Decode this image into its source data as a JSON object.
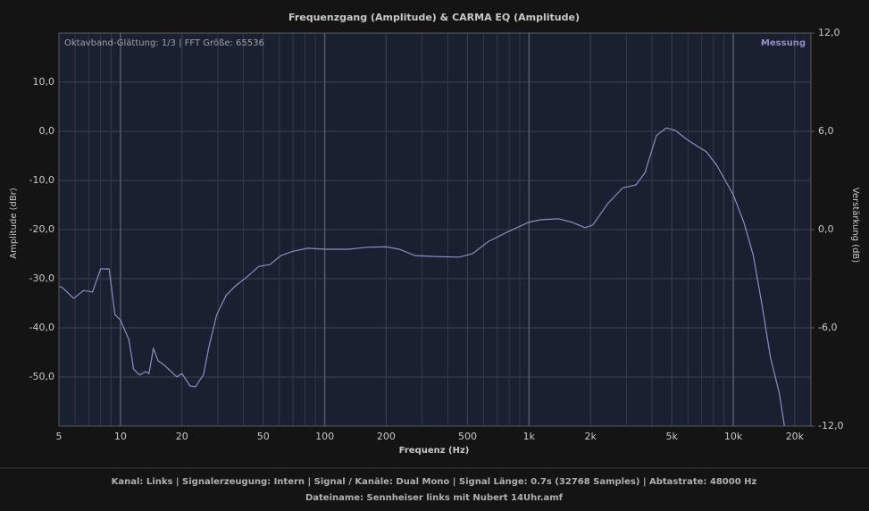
{
  "chart_data": {
    "type": "line",
    "title": "Frequenzgang (Amplitude) & CARMA EQ (Amplitude)",
    "annotation": "Oktavband-Glättung: 1/3 | FFT Größe: 65536",
    "x_label": "Frequenz (Hz)",
    "y_label": "Amplitude (dBr)",
    "y2_label": "Verstärkung (dB)",
    "log_x": true,
    "grid": true,
    "legend_position": "top-right",
    "xlim": [
      5,
      24000
    ],
    "xticks": [
      5,
      10,
      20,
      50,
      100,
      200,
      500,
      {
        "value": 1000,
        "label": "1k"
      },
      {
        "value": 2000,
        "label": "2k"
      },
      {
        "value": 5000,
        "label": "5k"
      },
      {
        "value": 10000,
        "label": "10k"
      },
      {
        "value": 20000,
        "label": "20k"
      }
    ],
    "xminor": [
      6,
      7,
      8,
      9,
      30,
      40,
      60,
      70,
      80,
      90,
      300,
      400,
      600,
      700,
      800,
      900,
      3000,
      4000,
      6000,
      7000,
      8000,
      9000
    ],
    "ylim": [
      -60,
      20
    ],
    "yticks": [
      {
        "value": -50,
        "label": "-50,0"
      },
      {
        "value": -40,
        "label": "-40,0"
      },
      {
        "value": -30,
        "label": "-30,0"
      },
      {
        "value": -20,
        "label": "-20,0"
      },
      {
        "value": -10,
        "label": "-10,0"
      },
      {
        "value": 0,
        "label": "0,0"
      },
      {
        "value": 10,
        "label": "10,0"
      }
    ],
    "y2lim": [
      -12,
      12
    ],
    "y2ticks": [
      {
        "value": -12,
        "label": "-12,0"
      },
      {
        "value": -6,
        "label": "-6,0"
      },
      {
        "value": 0,
        "label": "0,0"
      },
      {
        "value": 6,
        "label": "6,0"
      },
      {
        "value": 12,
        "label": "12,0"
      }
    ],
    "x": [
      5,
      5.2,
      5.9,
      6.6,
      7.3,
      8.0,
      8.8,
      9.4,
      10,
      11,
      11.6,
      12.4,
      13.3,
      13.8,
      14.5,
      15.3,
      16.3,
      17.7,
      18.9,
      20,
      20.9,
      21.9,
      23.3,
      24.4,
      25.5,
      27,
      29.6,
      33,
      36.5,
      41.7,
      47.5,
      54,
      61,
      70,
      82.6,
      100,
      131,
      160,
      200,
      232,
      277,
      356,
      455,
      529,
      634,
      792,
      1000,
      1140,
      1390,
      1620,
      1880,
      2050,
      2430,
      2880,
      3340,
      3700,
      4200,
      4700,
      5200,
      5900,
      6600,
      7400,
      8300,
      10000,
      11300,
      12500,
      13800,
      15200,
      16800,
      17800
    ],
    "series": [
      {
        "name": "Messung",
        "color": "#8a8fc0",
        "values": [
          -31.5,
          -31.8,
          -34.0,
          -32.4,
          -32.7,
          -28.0,
          -28.0,
          -37.3,
          -38.4,
          -42.4,
          -48.4,
          -49.6,
          -48.9,
          -49.3,
          -44.2,
          -46.7,
          -47.5,
          -48.9,
          -50.0,
          -49.3,
          -50.5,
          -51.8,
          -52.0,
          -50.7,
          -49.6,
          -44.2,
          -37.3,
          -33.3,
          -31.5,
          -29.6,
          -27.5,
          -27.1,
          -25.3,
          -24.4,
          -23.8,
          -24.0,
          -24.0,
          -23.6,
          -23.5,
          -24.0,
          -25.3,
          -25.5,
          -25.6,
          -24.9,
          -22.4,
          -20.4,
          -18.5,
          -18.0,
          -17.8,
          -18.5,
          -19.6,
          -19.1,
          -14.7,
          -11.5,
          -10.9,
          -8.4,
          -0.9,
          0.7,
          0.2,
          -1.6,
          -2.9,
          -4.2,
          -6.9,
          -12.9,
          -18.7,
          -25.1,
          -35.1,
          -46.0,
          -53.3,
          -60.0
        ]
      }
    ]
  },
  "footer": {
    "info": "Kanal: Links  |  Signalerzeugung: Intern  |  Signal / Kanäle: Dual Mono  |  Signal Länge: 0.7s (32768 Samples)  |  Abtastrate: 48000 Hz",
    "filename": "Dateiname: Sennheiser links mit Nubert 14Uhr.amf"
  }
}
